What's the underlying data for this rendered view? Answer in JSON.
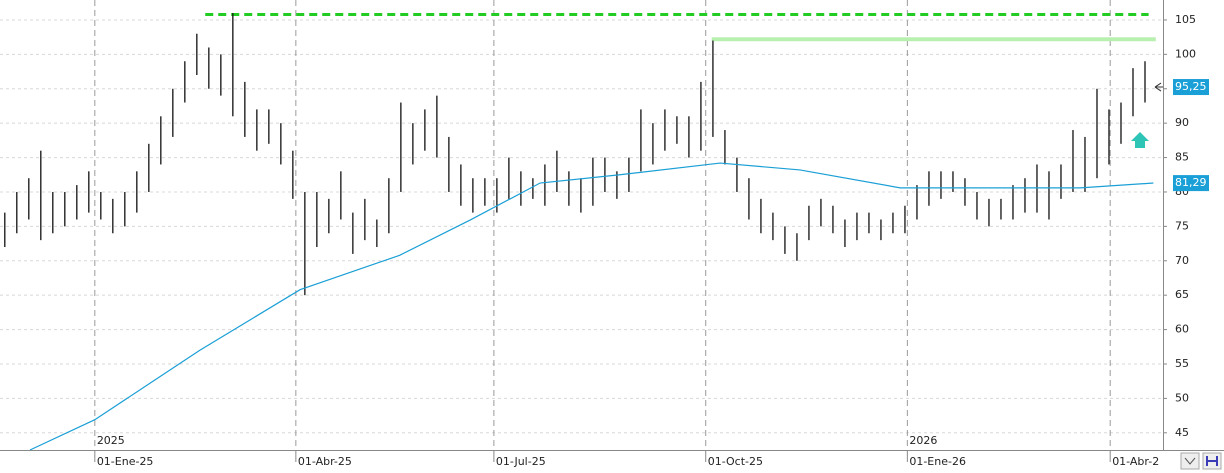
{
  "chart_data": {
    "type": "ohlc",
    "xlim": [
      -0.4,
      96.5
    ],
    "ylim": [
      42.5,
      107.9
    ],
    "yticks": [
      45,
      50,
      55,
      60,
      65,
      70,
      75,
      80,
      85,
      90,
      95,
      100,
      105
    ],
    "xticks": [
      {
        "value": 7.5,
        "label": "01-Ene-25"
      },
      {
        "value": 24.25,
        "label": "01-Abr-25"
      },
      {
        "value": 40.75,
        "label": "01-Jul-25"
      },
      {
        "value": 58.4,
        "label": "01-Oct-25"
      },
      {
        "value": 75.2,
        "label": "01-Ene-26"
      },
      {
        "value": 92.1,
        "label": "01-Abr-2"
      }
    ],
    "year_labels": [
      {
        "value": 7.5,
        "label": "2025"
      },
      {
        "value": 75.2,
        "label": "2026"
      }
    ],
    "grid": true,
    "bar_color": "#111111",
    "high": [
      77,
      80,
      82,
      86,
      80,
      80,
      81,
      83,
      80,
      79,
      80,
      83,
      87,
      91,
      95,
      99,
      103,
      101,
      100,
      106,
      96,
      92,
      92,
      90,
      86,
      80,
      80,
      79,
      83,
      77,
      79,
      76,
      82,
      93,
      90,
      92,
      94,
      88,
      84,
      82,
      82,
      82,
      85,
      83,
      82,
      84,
      86,
      83,
      82,
      85,
      85,
      83,
      85,
      92,
      90,
      92,
      91,
      91,
      96,
      102,
      89,
      85,
      82,
      79,
      77,
      75,
      74,
      78,
      79,
      78,
      76,
      77,
      77,
      76,
      77,
      78,
      81,
      83,
      83,
      83,
      82,
      80,
      79,
      79,
      81,
      82,
      84,
      83,
      84,
      89,
      88,
      95,
      92,
      93,
      98,
      99
    ],
    "low": [
      72,
      74,
      76,
      73,
      74,
      75,
      76,
      77,
      76,
      74,
      75,
      77,
      80,
      84,
      88,
      93,
      97,
      95,
      94,
      91,
      88,
      86,
      87,
      84,
      79,
      65,
      72,
      74,
      76,
      71,
      73,
      72,
      74,
      80,
      84,
      86,
      85,
      80,
      78,
      77,
      78,
      77,
      79,
      78,
      79,
      78,
      80,
      78,
      77,
      78,
      80,
      79,
      80,
      83,
      84,
      86,
      87,
      85,
      86,
      88,
      84,
      80,
      76,
      74,
      73,
      71,
      70,
      73,
      75,
      74,
      72,
      73,
      74,
      73,
      74,
      74,
      76,
      78,
      79,
      80,
      78,
      76,
      75,
      76,
      76,
      77,
      77,
      76,
      79,
      80,
      80,
      82,
      84,
      87,
      91,
      93
    ],
    "moving_average": {
      "color": "#1a9fd6",
      "x": [
        2.1,
        7.5,
        16.25,
        24.6,
        32.9,
        38.75,
        44.6,
        51.25,
        59.6,
        66.25,
        74.6,
        82.9,
        89.6,
        95.7
      ],
      "values": [
        42.5,
        46.9,
        57,
        65.8,
        70.8,
        75.9,
        81.3,
        82.5,
        84.2,
        83.2,
        80.6,
        80.6,
        80.6,
        81.3
      ]
    },
    "last_price": {
      "value": 95.25,
      "label": "95,25"
    },
    "ma_last": {
      "value": 81.29,
      "label": "81,29"
    },
    "levels": [
      {
        "value": 105.8,
        "x": [
          16.7,
          95.3
        ],
        "color": "#22cc22",
        "dashed": true
      },
      {
        "value": 102.2,
        "x": [
          58.9,
          95.9
        ],
        "color": "#b8f0b0",
        "dashed": false
      }
    ]
  }
}
